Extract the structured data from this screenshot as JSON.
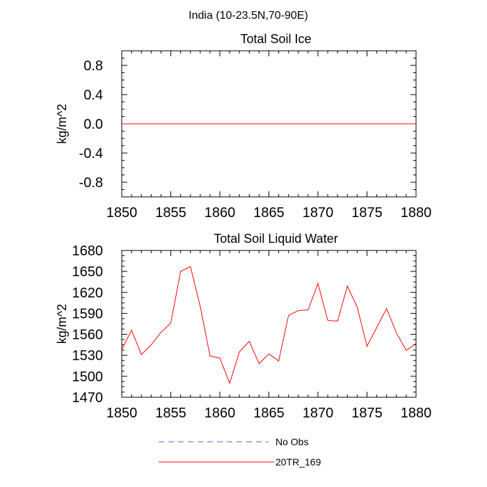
{
  "figure": {
    "title": "India (10-23.5N,70-90E)"
  },
  "chart_data": [
    {
      "type": "line",
      "title": "Total Soil Ice",
      "xlabel": "",
      "ylabel": "kg/m^2",
      "xlim": [
        1850,
        1880
      ],
      "ylim": [
        -1.0,
        1.0
      ],
      "x_ticks": [
        1850,
        1855,
        1860,
        1865,
        1870,
        1875,
        1880
      ],
      "y_ticks": [
        0.8,
        0.4,
        0.0,
        -0.4,
        -0.8
      ],
      "y_tick_labels": [
        "0.8",
        "0.4",
        "0.0",
        "-0.4",
        "-0.8"
      ],
      "grid": false,
      "series": [
        {
          "name": "20TR_169",
          "color": "#ff0000",
          "x": [
            1850,
            1880
          ],
          "values": [
            0.0,
            0.0
          ]
        }
      ]
    },
    {
      "type": "line",
      "title": "Total Soil Liquid Water",
      "xlabel": "",
      "ylabel": "kg/m^2",
      "xlim": [
        1850,
        1880
      ],
      "ylim": [
        1470,
        1680
      ],
      "x_ticks": [
        1850,
        1855,
        1860,
        1865,
        1870,
        1875,
        1880
      ],
      "y_ticks": [
        1680,
        1650,
        1620,
        1590,
        1560,
        1530,
        1500,
        1470
      ],
      "y_tick_labels": [
        "1680",
        "1650",
        "1620",
        "1590",
        "1560",
        "1530",
        "1500",
        "1470"
      ],
      "grid": false,
      "series": [
        {
          "name": "20TR_169",
          "color": "#ff0000",
          "x": [
            1850,
            1851,
            1852,
            1853,
            1854,
            1855,
            1856,
            1857,
            1858,
            1859,
            1860,
            1861,
            1862,
            1863,
            1864,
            1865,
            1866,
            1867,
            1868,
            1869,
            1870,
            1871,
            1872,
            1873,
            1874,
            1875,
            1876,
            1877,
            1878,
            1879,
            1880
          ],
          "values": [
            1538,
            1566,
            1531,
            1545,
            1563,
            1576,
            1650,
            1657,
            1600,
            1529,
            1526,
            1490,
            1535,
            1550,
            1518,
            1532,
            1522,
            1587,
            1594,
            1595,
            1633,
            1580,
            1579,
            1629,
            1599,
            1543,
            1570,
            1597,
            1562,
            1537,
            1547
          ]
        }
      ]
    }
  ],
  "legend": {
    "placement": "bottom-center",
    "entries": [
      {
        "label": "No Obs",
        "color": "#5a5ad8",
        "style": "dashed"
      },
      {
        "label": "20TR_169",
        "color": "#ff0000",
        "style": "solid"
      }
    ]
  }
}
